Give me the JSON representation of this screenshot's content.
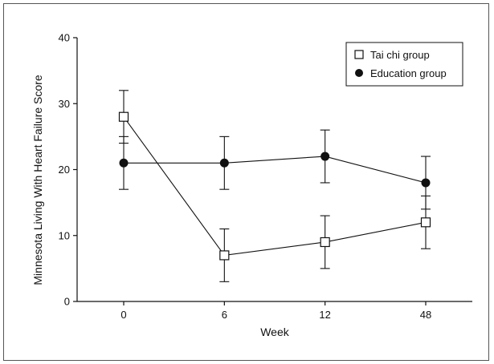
{
  "chart_data": {
    "type": "line",
    "title": "",
    "xlabel": "Week",
    "ylabel": "Minnesota Living With Heart Failure Score",
    "categories": [
      "0",
      "6",
      "12",
      "48"
    ],
    "ylim": [
      0,
      40
    ],
    "yticks": [
      "0",
      "10",
      "20",
      "30",
      "40"
    ],
    "grid": false,
    "legend_position": "top-right",
    "series": [
      {
        "name": "Tai chi group",
        "marker": "open-square",
        "color": "#111111",
        "values": [
          28,
          7,
          9,
          12
        ],
        "error_low": [
          24,
          3,
          5,
          8
        ],
        "error_high": [
          32,
          11,
          13,
          16
        ]
      },
      {
        "name": "Education group",
        "marker": "filled-circle",
        "color": "#111111",
        "values": [
          21,
          21,
          22,
          18
        ],
        "error_low": [
          17,
          17,
          18,
          14
        ],
        "error_high": [
          25,
          25,
          26,
          22
        ]
      }
    ]
  }
}
